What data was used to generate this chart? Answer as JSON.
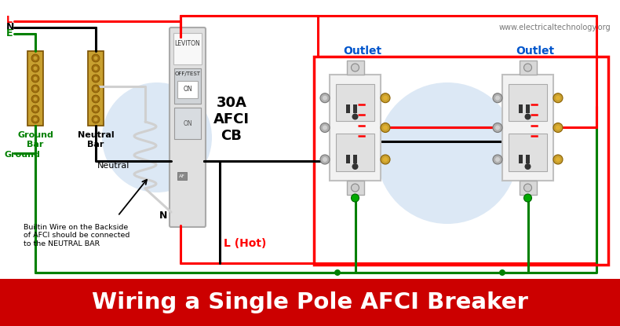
{
  "title": "Wiring a Single Pole AFCI Breaker",
  "title_bg": "#cc0000",
  "title_color": "#ffffff",
  "title_fontsize": 20,
  "website": "www.electricaltechnology.org",
  "bg_color": "#ffffff",
  "labels": {
    "L": "L",
    "N": "N",
    "E": "E",
    "ground_bar": "Ground\nBar",
    "neutral_bar": "Neutral\nBar",
    "ground": "Ground",
    "neutral": "Neutral",
    "breaker": "30A\nAFCI\nCB",
    "L_hot": "L (Hot)",
    "N_label": "N",
    "outlet1": "Outlet",
    "outlet2": "Outlet",
    "builtin_note": "Builtin Wire on the Backside\nof AFCI should be connected\nto the NEUTRAL BAR",
    "OFF_TEST": "OFF/TEST",
    "ON": "ON",
    "AF": "AF",
    "LEVITON": "LEVITON"
  },
  "colors": {
    "red": "#ff0000",
    "black": "#000000",
    "green": "#008000",
    "white": "#ffffff",
    "gray": "#aaaaaa",
    "light_gray": "#e0e0e0",
    "mid_gray": "#c0c0c0",
    "dark_gray": "#666666",
    "gold": "#b8860b",
    "gold2": "#c8a030",
    "outlet_white": "#f0f0f0",
    "breaker_white": "#e8e8e8",
    "blue_label": "#0055cc"
  },
  "wire_lw": 2.2,
  "fig_w": 7.9,
  "fig_h": 4.15,
  "dpi": 100
}
